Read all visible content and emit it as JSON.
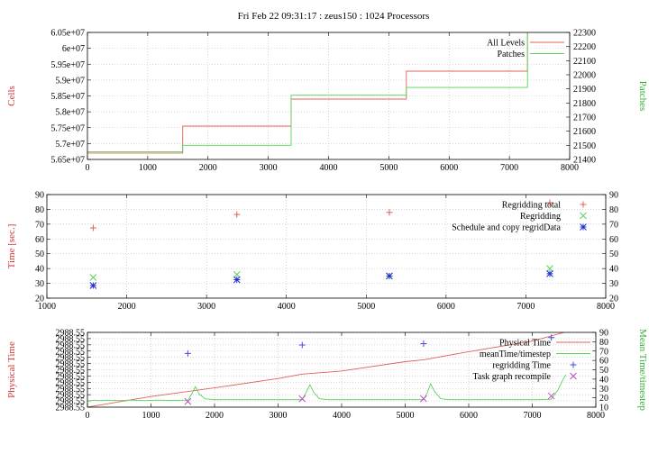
{
  "page_title": "Fri Feb 22 09:31:17 : zeus150 : 1024 Processors",
  "chart_data": [
    {
      "type": "line",
      "xlim": [
        0,
        8000
      ],
      "x_ticks": [
        0,
        1000,
        2000,
        3000,
        4000,
        5000,
        6000,
        7000,
        8000
      ],
      "ylabel": "Cells",
      "ylim": [
        56500000,
        60500000
      ],
      "y_ticks": [
        "5.65e+07",
        "5.7e+07",
        "5.75e+07",
        "5.8e+07",
        "5.85e+07",
        "5.9e+07",
        "5.95e+07",
        "6e+07",
        "6.05e+07"
      ],
      "y2label": "Patches",
      "y2lim": [
        21400,
        22300
      ],
      "y2_ticks": [
        21400,
        21500,
        21600,
        21700,
        21800,
        21900,
        22000,
        22100,
        22200,
        22300
      ],
      "grid": true,
      "legend_position": "top-right",
      "series": [
        {
          "name": "All Levels",
          "color": "#e0605a",
          "axis": "left",
          "step": true,
          "x": [
            0,
            1580,
            1580,
            3380,
            3380,
            5290,
            5290,
            7300,
            7300
          ],
          "y": [
            56700000,
            56700000,
            57550000,
            57550000,
            58400000,
            58400000,
            59280000,
            59280000,
            60500000
          ]
        },
        {
          "name": "Patches",
          "color": "#59d25a",
          "axis": "right",
          "step": true,
          "x": [
            0,
            1580,
            1580,
            3380,
            3380,
            5290,
            5290,
            7300,
            7300
          ],
          "y": [
            21455,
            21455,
            21500,
            21500,
            21855,
            21855,
            21910,
            21910,
            22300
          ]
        }
      ]
    },
    {
      "type": "scatter",
      "xlim": [
        1000,
        8000
      ],
      "x_ticks": [
        1000,
        2000,
        3000,
        4000,
        5000,
        6000,
        7000,
        8000
      ],
      "ylabel": "Time [sec.]",
      "ylim": [
        20,
        90
      ],
      "y_ticks": [
        20,
        30,
        40,
        50,
        60,
        70,
        80,
        90
      ],
      "y2lim": [
        20,
        90
      ],
      "y2_ticks": [
        20,
        30,
        40,
        50,
        60,
        70,
        80,
        90
      ],
      "grid": true,
      "legend_position": "top-right",
      "series": [
        {
          "name": "Regridding total",
          "color": "#e0605a",
          "marker": "plus",
          "x": [
            1580,
            3380,
            5290,
            7300
          ],
          "y": [
            67.5,
            76.5,
            78,
            84.5
          ]
        },
        {
          "name": "Regridding",
          "color": "#59d25a",
          "marker": "x",
          "x": [
            1580,
            3380,
            5290,
            7300
          ],
          "y": [
            34,
            36,
            35,
            40
          ]
        },
        {
          "name": "Schedule and copy regridData",
          "color": "#2530c8",
          "marker": "star",
          "x": [
            1580,
            3380,
            5290,
            7300
          ],
          "y": [
            28.5,
            32.5,
            35,
            36.5
          ]
        }
      ]
    },
    {
      "type": "line",
      "xlim": [
        0,
        8000
      ],
      "x_ticks": [
        0,
        1000,
        2000,
        3000,
        4000,
        5000,
        6000,
        7000,
        8000
      ],
      "ylabel": "Physical Time",
      "y_ticks": [
        "2988.55",
        "2988.55",
        "2988.55",
        "2988.55",
        "2988.55",
        "2988.55",
        "2988.55",
        "2988.55",
        "2988.55",
        "2988.55",
        "2988.55",
        "2988.55",
        "2988.55"
      ],
      "y_norm_lim": [
        0,
        12
      ],
      "y2label": "Mean Time/timestep",
      "y2lim": [
        10,
        90
      ],
      "y2_ticks": [
        10,
        20,
        30,
        40,
        50,
        60,
        70,
        80,
        90
      ],
      "grid": true,
      "legend_position": "top-right",
      "series": [
        {
          "name": "Physical Time",
          "color": "#e0605a",
          "axis": "left",
          "kind": "line",
          "x": [
            0,
            1000,
            2000,
            3000,
            3380,
            4000,
            5000,
            5290,
            6000,
            7000,
            7500
          ],
          "y": [
            0.0,
            1.7,
            3.1,
            4.6,
            5.3,
            5.8,
            7.3,
            7.6,
            8.9,
            10.6,
            12.0
          ]
        },
        {
          "name": "meanTime/timestep",
          "color": "#59d25a",
          "axis": "right",
          "kind": "line",
          "x": [
            0,
            100,
            200,
            300,
            500,
            700,
            900,
            1100,
            1300,
            1580,
            1650,
            1700,
            1760,
            1850,
            2000,
            2500,
            3000,
            3380,
            3450,
            3500,
            3560,
            3650,
            3800,
            4200,
            4600,
            5000,
            5290,
            5350,
            5400,
            5470,
            5560,
            5700,
            6100,
            6600,
            7100,
            7300,
            7400,
            7480,
            7530
          ],
          "y": [
            16.5,
            17.5,
            17,
            17.5,
            17,
            17.5,
            17,
            17.5,
            17.2,
            17.5,
            25,
            32,
            24,
            19,
            18,
            18,
            18,
            18,
            27,
            34,
            26,
            19,
            18,
            18,
            18,
            18,
            18,
            26,
            35,
            26,
            19,
            18,
            18,
            18,
            18,
            18.5,
            28,
            39,
            45
          ]
        },
        {
          "name": "regridding Time",
          "color": "#4a4ae0",
          "axis": "right",
          "kind": "marker",
          "marker": "plus",
          "x": [
            1580,
            3380,
            5290,
            7300
          ],
          "y": [
            67.5,
            76.5,
            78,
            84.5
          ]
        },
        {
          "name": "Task graph recompile",
          "color": "#c050c8",
          "axis": "right",
          "kind": "marker",
          "marker": "x",
          "x": [
            1580,
            3380,
            5290,
            7300
          ],
          "y": [
            16,
            19,
            19,
            22
          ]
        }
      ]
    }
  ]
}
